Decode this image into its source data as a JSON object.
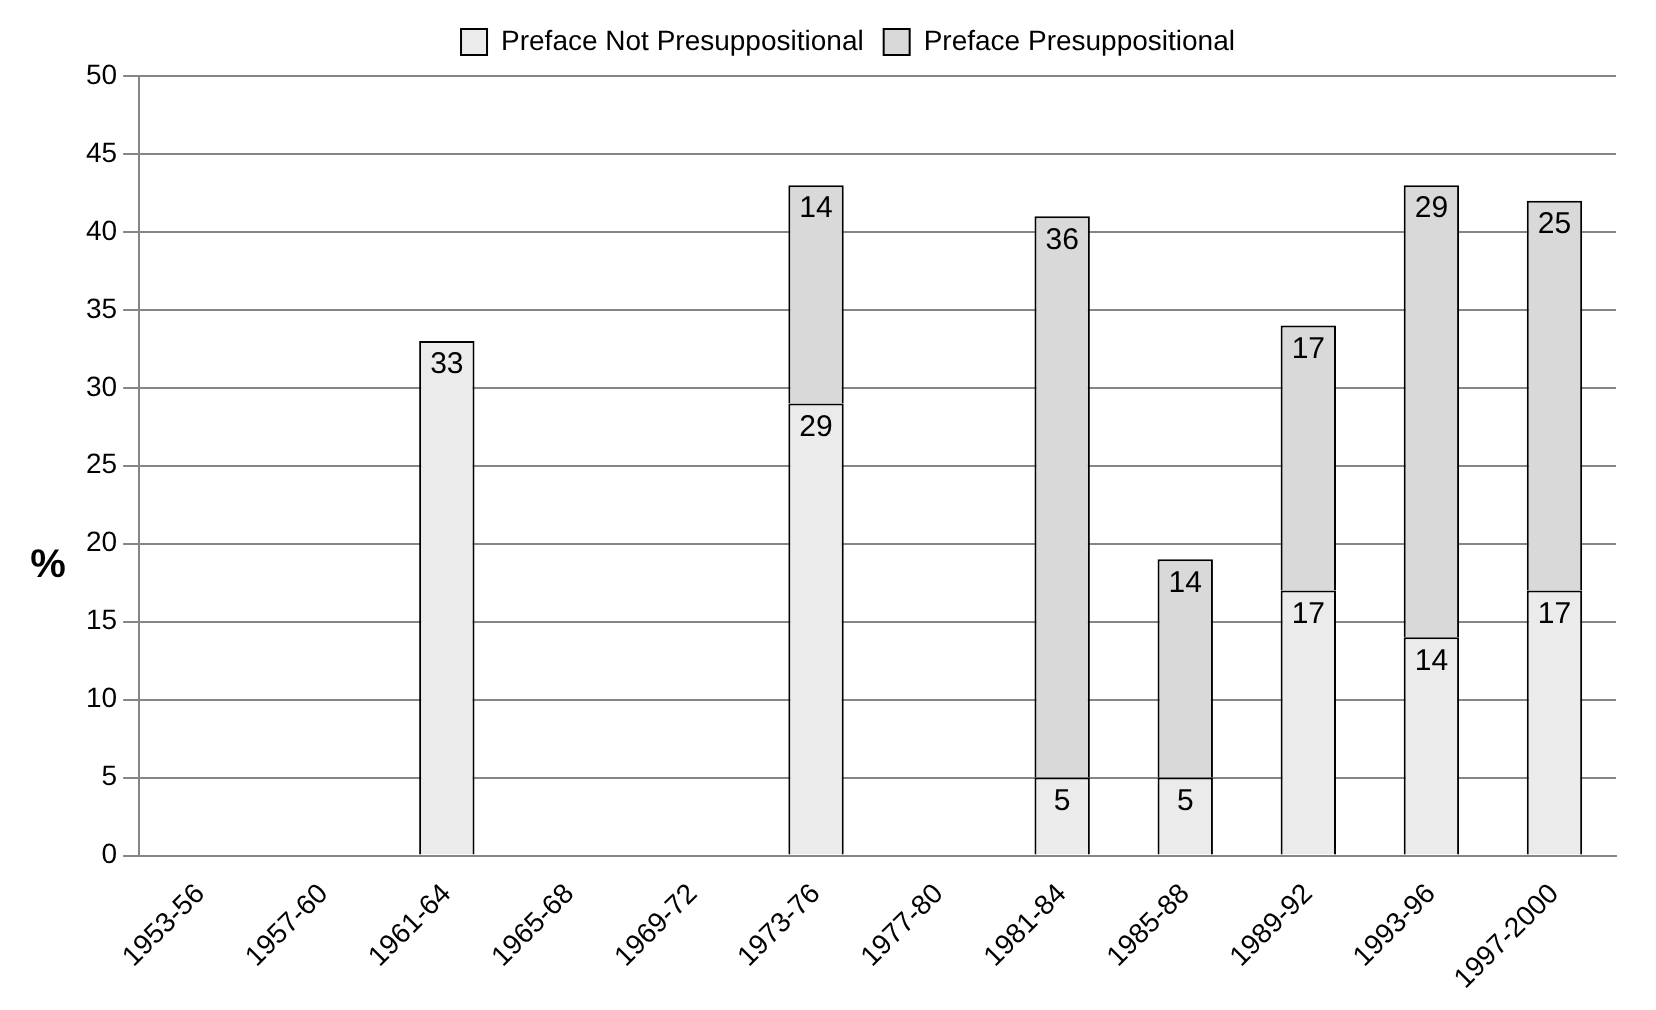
{
  "chart_data": {
    "type": "bar",
    "stacked": true,
    "ylabel": "%",
    "categories": [
      "1953-56",
      "1957-60",
      "1961-64",
      "1965-68",
      "1969-72",
      "1973-76",
      "1977-80",
      "1981-84",
      "1985-88",
      "1989-92",
      "1993-96",
      "1997-2000"
    ],
    "series": [
      {
        "name": "Preface Not Presuppositional",
        "color": "#ebebeb",
        "values": [
          null,
          null,
          33,
          null,
          null,
          29,
          null,
          5,
          5,
          17,
          14,
          17
        ]
      },
      {
        "name": "Preface Presuppositional",
        "color": "#d9d9d9",
        "values": [
          null,
          null,
          null,
          null,
          null,
          14,
          null,
          36,
          14,
          17,
          29,
          25
        ]
      }
    ],
    "ylim": [
      0,
      50
    ],
    "yticks": [
      0,
      5,
      10,
      15,
      20,
      25,
      30,
      35,
      40,
      45,
      50
    ],
    "grid": "y",
    "legend": "top",
    "data_labels": true
  }
}
